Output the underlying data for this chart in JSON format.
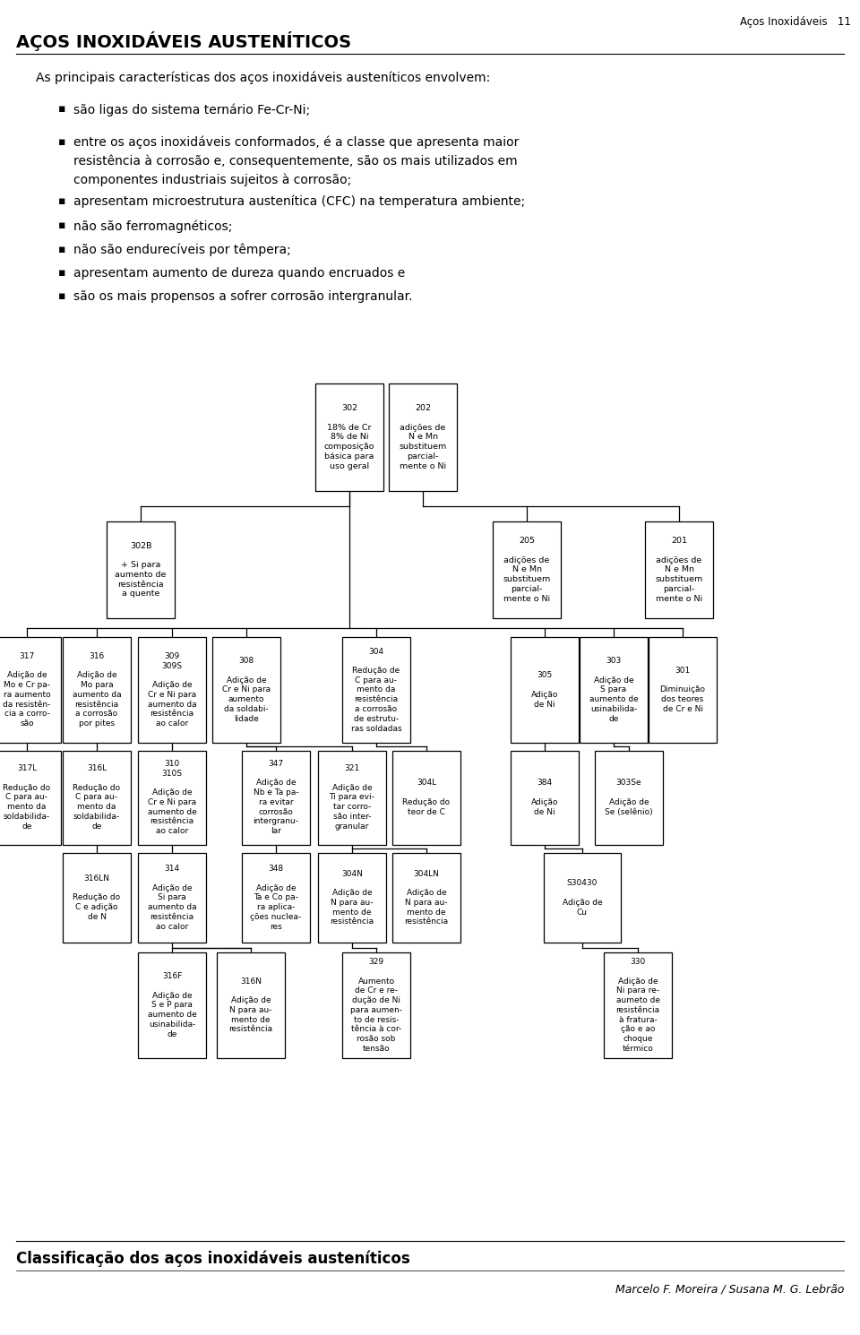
{
  "title": "AÇOS INOXIDÁVEIS AUSTENÍTICOS",
  "header_right": "Aços Inoxidáveis   11",
  "intro": "As principais características dos aços inoxidáveis austeníticos envolvem:",
  "footer_left": "Classificação dos aços inoxidáveis austeníticos",
  "footer_right": "Marcelo F. Moreira / Susana M. G. Lebrão",
  "nodes": {
    "302": {
      "label": "302\n\n18% de Cr\n8% de Ni\ncomposição\nbásica para\nuso geral"
    },
    "202": {
      "label": "202\n\nadições de\nN e Mn\nsubstituem\nparcial-\nmente o Ni"
    },
    "302B": {
      "label": "302B\n\n+ Si para\naumento de\nresistência\na quente"
    },
    "205": {
      "label": "205\n\nadições de\nN e Mn\nsubstituem\nparcial-\nmente o Ni"
    },
    "201": {
      "label": "201\n\nadições de\nN e Mn\nsubstituem\nparcial-\nmente o Ni"
    },
    "317": {
      "label": "317\n\nAdição de\nMo e Cr pa-\nra aumento\nda resistên-\ncia a corro-\nsão"
    },
    "316": {
      "label": "316\n\nAdição de\nMo para\naumento da\nresistência\na corrosão\npor pites"
    },
    "309_309S": {
      "label": "309\n309S\n\nAdição de\nCr e Ni para\naumento da\nresistência\nao calor"
    },
    "308": {
      "label": "308\n\nAdição de\nCr e Ni para\naumento\nda soldabi-\nlidade"
    },
    "304": {
      "label": "304\n\nRedução de\nC para au-\nmento da\nresistência\na corrosão\nde estrutu-\nras soldadas"
    },
    "305": {
      "label": "305\n\nAdição\nde Ni"
    },
    "303": {
      "label": "303\n\nAdição de\nS para\naumento de\nusinabilida-\nde"
    },
    "301": {
      "label": "301\n\nDiminuição\ndos teores\nde Cr e Ni"
    },
    "317L": {
      "label": "317L\n\nRedução do\nC para au-\nmento da\nsoldabilida-\nde"
    },
    "316L": {
      "label": "316L\n\nRedução do\nC para au-\nmento da\nsoldabilida-\nde"
    },
    "310_310S": {
      "label": "310\n310S\n\nAdição de\nCr e Ni para\naumento de\nresistência\nao calor"
    },
    "347": {
      "label": "347\n\nAdição de\nNb e Ta pa-\nra evitar\ncorrosão\nintergranu-\nlar"
    },
    "321": {
      "label": "321\n\nAdição de\nTi para evi-\ntar corro-\nsão inter-\ngranular"
    },
    "304L": {
      "label": "304L\n\nRedução do\nteor de C"
    },
    "384": {
      "label": "384\n\nAdição\nde Ni"
    },
    "303Se": {
      "label": "303Se\n\nAdição de\nSe (selênio)"
    },
    "316LN": {
      "label": "316LN\n\nRedução do\nC e adição\nde N"
    },
    "314": {
      "label": "314\n\nAdição de\nSi para\naumento da\nresistência\nao calor"
    },
    "348": {
      "label": "348\n\nAdição de\nTa e Co pa-\nra aplica-\nções nuclea-\nres"
    },
    "304N": {
      "label": "304N\n\nAdição de\nN para au-\nmento de\nresistência"
    },
    "304LN": {
      "label": "304LN\n\nAdição de\nN para au-\nmento de\nresistência"
    },
    "S30430": {
      "label": "S30430\n\nAdição de\nCu"
    },
    "316F": {
      "label": "316F\n\nAdição de\nS e P para\naumento de\nusinabilida-\nde"
    },
    "316N": {
      "label": "316N\n\nAdição de\nN para au-\nmento de\nresistência"
    },
    "329": {
      "label": "329\n\nAumento\nde Cr e re-\ndução de Ni\npara aumen-\nto de resis-\ntência à cor-\nrosão sob\ntensão"
    },
    "330": {
      "label": "330\n\nAdição de\nNi para re-\naumeto de\nresistência\nà fratura-\nção e ao\nchoque\ntérmico"
    }
  },
  "bg_color": "#ffffff",
  "box_color": "#000000",
  "text_color": "#000000",
  "line_color": "#000000"
}
